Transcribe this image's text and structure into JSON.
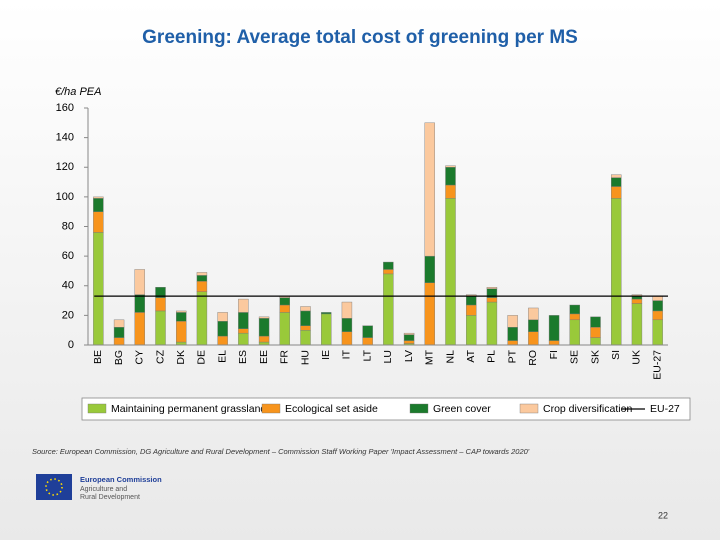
{
  "chart_data": {
    "type": "bar",
    "stacked": true,
    "title": "Greening: Average total cost of greening per MS",
    "y_axis_label": "€/ha PEA",
    "categories": [
      "BE",
      "BG",
      "CY",
      "CZ",
      "DK",
      "DE",
      "EL",
      "ES",
      "EE",
      "FR",
      "HU",
      "IE",
      "IT",
      "LT",
      "LU",
      "LV",
      "MT",
      "NL",
      "AT",
      "PL",
      "PT",
      "RO",
      "FI",
      "SE",
      "SK",
      "SI",
      "UK",
      "EU-27"
    ],
    "series": [
      {
        "name": "Maintaining permanent grassland",
        "color": "#99c93a",
        "values": [
          76,
          0,
          0,
          23,
          2,
          36,
          0,
          8,
          2,
          22,
          10,
          21,
          0,
          0,
          48,
          1,
          0,
          99,
          20,
          29,
          0,
          0,
          0,
          17,
          5,
          99,
          28,
          17
        ]
      },
      {
        "name": "Ecological set aside",
        "color": "#f7941d",
        "values": [
          14,
          5,
          22,
          9,
          14,
          7,
          6,
          3,
          4,
          5,
          3,
          0,
          9,
          5,
          3,
          2,
          42,
          9,
          7,
          3,
          3,
          9,
          3,
          4,
          7,
          8,
          3,
          6
        ]
      },
      {
        "name": "Green cover",
        "color": "#1b7a2c",
        "values": [
          9,
          7,
          12,
          7,
          6,
          4,
          10,
          11,
          12,
          5,
          10,
          1,
          9,
          8,
          5,
          4,
          18,
          12,
          6,
          6,
          9,
          8,
          17,
          6,
          7,
          6,
          2,
          7
        ]
      },
      {
        "name": "Crop diversification",
        "color": "#fbc99e",
        "values": [
          1,
          5,
          17,
          0,
          1,
          2,
          6,
          9,
          1,
          1,
          3,
          0,
          11,
          0,
          0,
          1,
          90,
          1,
          1,
          1,
          8,
          8,
          0,
          0,
          0,
          2,
          1,
          3
        ]
      }
    ],
    "reference_line": {
      "name": "EU-27",
      "value": 33,
      "color": "#000000"
    },
    "ylim": [
      0,
      160
    ],
    "yticks": [
      0,
      20,
      40,
      60,
      80,
      100,
      120,
      140,
      160
    ],
    "grid": false,
    "source": "Source: European Commission, DG Agriculture and Rural Development – Commission Staff Working Paper 'Impact Assessment – CAP towards 2020'"
  },
  "footer": {
    "organisation": "European Commission",
    "department_line1": "Agriculture and",
    "department_line2": "Rural Development",
    "page_number": "22"
  }
}
